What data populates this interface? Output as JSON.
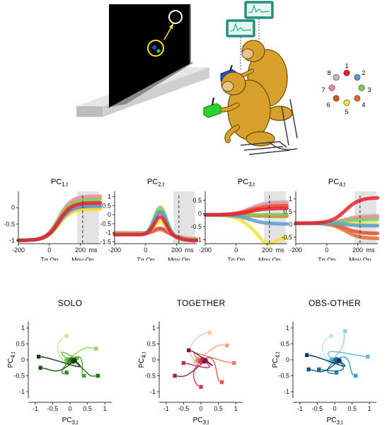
{
  "scene": {
    "target_numbers": [
      "1",
      "2",
      "3",
      "4",
      "5",
      "6",
      "7",
      "8"
    ],
    "target_colors": [
      "#e8202a",
      "#5b9bd5",
      "#7ccf52",
      "#e86a2a",
      "#f4e23a",
      "#e0502a",
      "#f28ca0",
      "#bdbdbd"
    ],
    "monitor_trace_color": "#2fbf7f"
  },
  "pc_panels": [
    {
      "title": "PC",
      "sub": "1,t",
      "yticks": [
        "0",
        "-0.5",
        "-1"
      ]
    },
    {
      "title": "PC",
      "sub": "2,t",
      "yticks": [
        "1",
        "0.5",
        "0",
        "-0.5",
        "-1",
        "-1.5"
      ]
    },
    {
      "title": "PC",
      "sub": "3,t",
      "yticks": [
        "0.5",
        "0",
        "-0.5",
        "-1"
      ]
    },
    {
      "title": "PC",
      "sub": "4,t",
      "yticks": [
        "1",
        "0.5",
        "0",
        "-0.5"
      ]
    }
  ],
  "pc_xticks": [
    "-200",
    "0",
    "200"
  ],
  "pc_xunit": "ms",
  "pc_events": {
    "tg_on": "Tg On",
    "mov_on": "Mov On"
  },
  "traj_panels": [
    {
      "title": "SOLO",
      "palette": [
        "#c7e9a0",
        "#9bd36a",
        "#6cbf3f",
        "#4ea12a",
        "#3b8a23",
        "#2b6e1a",
        "#1e5413",
        "#143d0d"
      ]
    },
    {
      "title": "TOGETHER",
      "palette": [
        "#f7c6a3",
        "#f4a582",
        "#ec7c5e",
        "#e05a4a",
        "#d14050",
        "#b82d57",
        "#9b1f57",
        "#7a1250"
      ]
    },
    {
      "title": "OBS-OTHER",
      "palette": [
        "#bfe6f2",
        "#8fd0e8",
        "#5fb7da",
        "#369bc8",
        "#2381b2",
        "#166a99",
        "#0e537c",
        "#083c5e"
      ]
    }
  ],
  "traj_axes": {
    "xlabel": "PC",
    "xlabel_sub": "3,t",
    "ylabel": "PC",
    "ylabel_sub": "4,t",
    "xticks": [
      "-1",
      "-0.5",
      "0",
      "0.5",
      "1"
    ],
    "yticks": [
      "1",
      "0.5",
      "0",
      "-0.5",
      "-1"
    ]
  }
}
